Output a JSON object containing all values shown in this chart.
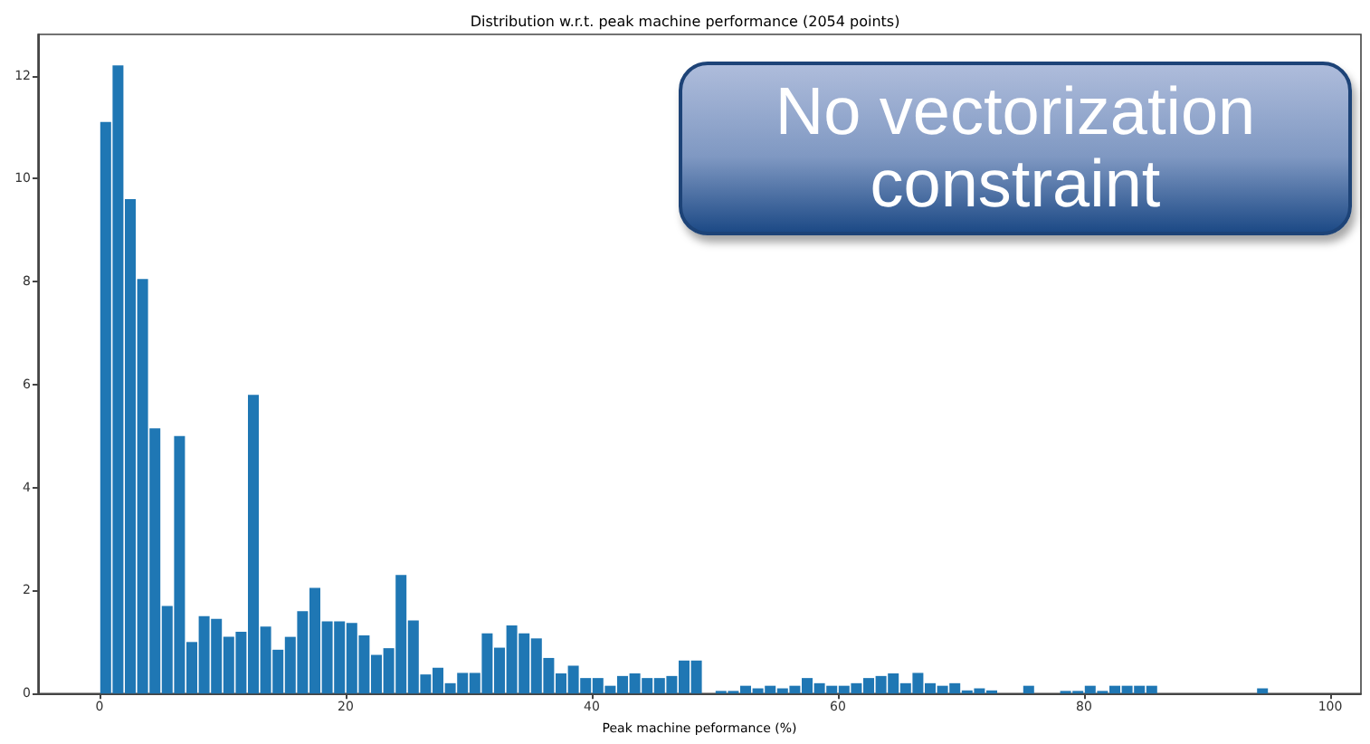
{
  "chart_data": {
    "type": "histogram",
    "title": "Distribution w.r.t. peak machine performance (2054 points)",
    "xlabel": "Peak machine peformance (%)",
    "annotations": [
      "No vectorization constraint"
    ],
    "bins": [
      0,
      1,
      2,
      3,
      4,
      5,
      6,
      7,
      8,
      9,
      10,
      11,
      12,
      13,
      14,
      15,
      16,
      17,
      18,
      19,
      20,
      21,
      22,
      23,
      24,
      25,
      26,
      27,
      28,
      29,
      30,
      31,
      32,
      33,
      34,
      35,
      36,
      37,
      38,
      39,
      40,
      41,
      42,
      43,
      44,
      45,
      46,
      47,
      48,
      49,
      50,
      51,
      52,
      53,
      54,
      55,
      56,
      57,
      58,
      59,
      60,
      61,
      62,
      63,
      64,
      65,
      66,
      67,
      68,
      69,
      70,
      71,
      72,
      73,
      74,
      75,
      76,
      77,
      78,
      79,
      80,
      81,
      82,
      83,
      84,
      85,
      86,
      87,
      88,
      89,
      90,
      91,
      92,
      93,
      94,
      95,
      96,
      97,
      98,
      99,
      100
    ],
    "values": [
      11.1,
      12.2,
      9.6,
      8.05,
      5.15,
      1.7,
      5.0,
      1.0,
      1.5,
      1.45,
      1.1,
      1.2,
      5.8,
      1.3,
      0.85,
      1.1,
      1.6,
      2.05,
      1.4,
      1.4,
      1.37,
      1.13,
      0.75,
      0.88,
      2.3,
      1.42,
      0.37,
      0.5,
      0.2,
      0.4,
      0.4,
      1.17,
      0.89,
      1.32,
      1.17,
      1.07,
      0.69,
      0.39,
      0.54,
      0.3,
      0.3,
      0.15,
      0.34,
      0.39,
      0.3,
      0.3,
      0.34,
      0.64,
      0.64,
      0,
      0.05,
      0.05,
      0.15,
      0.1,
      0.15,
      0.1,
      0.15,
      0.3,
      0.2,
      0.15,
      0.15,
      0.2,
      0.3,
      0.34,
      0.39,
      0.2,
      0.4,
      0.2,
      0.15,
      0.2,
      0.06,
      0.1,
      0.06,
      0,
      0,
      0.15,
      0,
      0,
      0.05,
      0.05,
      0.15,
      0.05,
      0.15,
      0.15,
      0.15,
      0.15,
      0,
      0,
      0,
      0,
      0,
      0,
      0,
      0,
      0.1,
      0,
      0,
      0,
      0,
      0
    ],
    "color": "#1f77b4",
    "xlim": [
      -5,
      102.5
    ],
    "xticks": [
      0,
      20,
      40,
      60,
      80,
      100
    ],
    "ylim": [
      0,
      12.8
    ],
    "yticks": [
      0,
      2,
      4,
      6,
      8,
      10,
      12
    ],
    "grid": false
  }
}
